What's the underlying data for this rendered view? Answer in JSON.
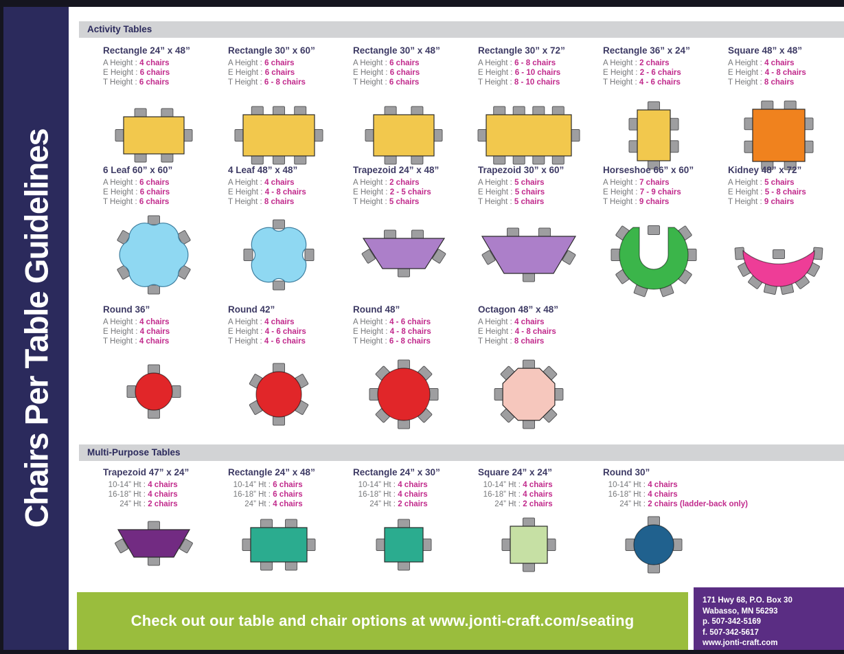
{
  "theme": {
    "sidebar_bg": "#2b2a5c",
    "edge_bg": "#15151f",
    "header_bar_bg": "#d2d3d5",
    "header_text": "#2b2a5c",
    "title_text": "#3d3a64",
    "label_text": "#77787b",
    "value_text": "#c12a8c",
    "banner_bg": "#9abd3d",
    "banner_text": "#ffffff",
    "address_bg": "#5a2d83",
    "chair_fill": "#9e9ea0",
    "chair_stroke": "#58585a"
  },
  "sidebar": {
    "title": "Chairs Per Table Guidelines"
  },
  "sections": [
    {
      "header": "Activity Tables",
      "spec_labels": [
        "A Height :",
        "E Height :",
        "T Height :"
      ],
      "rows": [
        [
          {
            "title": "Rectangle 24” x 48”",
            "specs": [
              "4 chairs",
              "6 chairs",
              "6 chairs"
            ],
            "diagram": "rect-24x48",
            "color": "#f2c84d"
          },
          {
            "title": "Rectangle 30” x 60”",
            "specs": [
              "6 chairs",
              "6 chairs",
              "6 - 8 chairs"
            ],
            "diagram": "rect-30x60",
            "color": "#f2c84d"
          },
          {
            "title": "Rectangle 30” x 48”",
            "specs": [
              "6 chairs",
              "6 chairs",
              "6 chairs"
            ],
            "diagram": "rect-30x48",
            "color": "#f2c84d"
          },
          {
            "title": "Rectangle 30” x 72”",
            "specs": [
              "6 - 8 chairs",
              "6 - 10 chairs",
              "8 - 10 chairs"
            ],
            "diagram": "rect-30x72",
            "color": "#f2c84d"
          },
          {
            "title": "Rectangle 36” x 24”",
            "specs": [
              "2 chairs",
              "2 - 6 chairs",
              "4 - 6 chairs"
            ],
            "diagram": "rect-36x24",
            "color": "#f2c84d"
          },
          {
            "title": "Square 48” x 48”",
            "specs": [
              "4 chairs",
              "4 - 8 chairs",
              "8 chairs"
            ],
            "diagram": "square-48",
            "color": "#f0821e"
          }
        ],
        [
          {
            "title": "6 Leaf 60” x 60”",
            "specs": [
              "6 chairs",
              "6 chairs",
              "6 chairs"
            ],
            "diagram": "leaf-6",
            "color": "#8fd8f2"
          },
          {
            "title": "4 Leaf 48” x 48”",
            "specs": [
              "4 chairs",
              "4 - 8 chairs",
              "8 chairs"
            ],
            "diagram": "leaf-4",
            "color": "#8fd8f2"
          },
          {
            "title": "Trapezoid 24” x 48”",
            "specs": [
              "2 chairs",
              "2 - 5 chairs",
              "5 chairs"
            ],
            "diagram": "trap-24x48",
            "color": "#ac7fc9"
          },
          {
            "title": "Trapezoid 30” x 60”",
            "specs": [
              "5 chairs",
              "5 chairs",
              "5 chairs"
            ],
            "diagram": "trap-30x60",
            "color": "#ac7fc9"
          },
          {
            "title": "Horseshoe 66” x 60”",
            "specs": [
              "7 chairs",
              "7 - 9 chairs",
              "9 chairs"
            ],
            "diagram": "horseshoe",
            "color": "#3bb54a"
          },
          {
            "title": "Kidney 48” x 72”",
            "specs": [
              "5 chairs",
              "5 - 8 chairs",
              "9 chairs"
            ],
            "diagram": "kidney",
            "color": "#ee3d97"
          }
        ],
        [
          {
            "title": "Round 36”",
            "specs": [
              "4 chairs",
              "4 chairs",
              "4 chairs"
            ],
            "diagram": "round-36",
            "color": "#e12629"
          },
          {
            "title": "Round 42”",
            "specs": [
              "4 chairs",
              "4 - 6 chairs",
              "4 - 6 chairs"
            ],
            "diagram": "round-42",
            "color": "#e12629"
          },
          {
            "title": "Round 48”",
            "specs": [
              "4 - 6 chairs",
              "4 - 8 chairs",
              "6 - 8 chairs"
            ],
            "diagram": "round-48",
            "color": "#e12629"
          },
          {
            "title": "Octagon 48” x 48”",
            "specs": [
              "4 chairs",
              "4 - 8 chairs",
              "8 chairs"
            ],
            "diagram": "octagon-48",
            "color": "#f6c7bd"
          }
        ]
      ]
    },
    {
      "header": "Multi-Purpose Tables",
      "spec_labels": [
        "10-14” Ht :",
        "16-18” Ht :",
        "24” Ht :"
      ],
      "rows": [
        [
          {
            "title": "Trapezoid 47” x 24”",
            "specs": [
              "4 chairs",
              "4 chairs",
              "2 chairs"
            ],
            "diagram": "mp-trap",
            "color": "#722b82"
          },
          {
            "title": "Rectangle 24” x 48”",
            "specs": [
              "6 chairs",
              "6 chairs",
              "4 chairs"
            ],
            "diagram": "mp-rect-24x48",
            "color": "#2bac8f"
          },
          {
            "title": "Rectangle 24” x 30”",
            "specs": [
              "4 chairs",
              "4 chairs",
              "2 chairs"
            ],
            "diagram": "mp-rect-24x30",
            "color": "#2bac8f"
          },
          {
            "title": "Square 24” x 24”",
            "specs": [
              "4 chairs",
              "4 chairs",
              "2 chairs"
            ],
            "diagram": "mp-square-24",
            "color": "#c6e0a4"
          },
          {
            "title": "Round 30”",
            "specs": [
              "4 chairs",
              "4 chairs",
              "2 chairs (ladder-back only)"
            ],
            "diagram": "mp-round-30",
            "color": "#20618e"
          }
        ]
      ]
    }
  ],
  "footer": {
    "banner_text": "Check out our table and chair options at www.jonti-craft.com/seating",
    "address_lines": [
      "171 Hwy 68, P.O. Box 30",
      "Wabasso, MN 56293",
      "p. 507-342-5169",
      "f. 507-342-5617",
      "www.jonti-craft.com"
    ]
  }
}
